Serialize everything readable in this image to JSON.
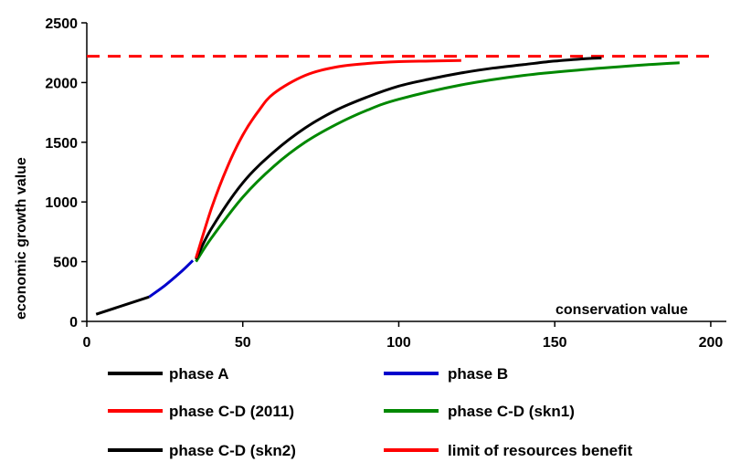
{
  "chart_data": {
    "type": "line",
    "title": "",
    "xlabel": "conservation  value",
    "ylabel": "economic  growth  value",
    "xlim": [
      0,
      205
    ],
    "ylim": [
      0,
      2500
    ],
    "xticks": [
      0,
      50,
      100,
      150,
      200
    ],
    "yticks": [
      0,
      500,
      1000,
      1500,
      2000,
      2500
    ],
    "grid": false,
    "legend_position": "bottom",
    "series": [
      {
        "name": "phase A",
        "color": "#000000",
        "style": "solid",
        "x": [
          3,
          20
        ],
        "y": [
          60,
          205
        ]
      },
      {
        "name": "phase B",
        "color": "#0000cc",
        "style": "solid",
        "x": [
          20,
          25,
          30,
          34
        ],
        "y": [
          205,
          300,
          410,
          510
        ]
      },
      {
        "name": "phase C-D (2011)",
        "color": "#ff0000",
        "style": "solid",
        "x": [
          35,
          40,
          45,
          50,
          55,
          60,
          70,
          80,
          90,
          100,
          110,
          120
        ],
        "y": [
          530,
          950,
          1290,
          1560,
          1760,
          1910,
          2060,
          2130,
          2160,
          2175,
          2180,
          2185
        ]
      },
      {
        "name": "phase  C-D (skn1)",
        "color": "#008800",
        "style": "solid",
        "x": [
          35,
          40,
          50,
          60,
          70,
          80,
          90,
          100,
          120,
          140,
          160,
          180,
          190
        ],
        "y": [
          500,
          700,
          1040,
          1300,
          1500,
          1650,
          1770,
          1860,
          1980,
          2060,
          2110,
          2150,
          2165
        ]
      },
      {
        "name": "phase  C-D  (skn2)",
        "color": "#000000",
        "style": "solid",
        "x": [
          35,
          40,
          50,
          60,
          70,
          80,
          90,
          100,
          110,
          120,
          130,
          140,
          150,
          160,
          165
        ],
        "y": [
          520,
          780,
          1160,
          1420,
          1620,
          1770,
          1880,
          1970,
          2030,
          2080,
          2120,
          2150,
          2180,
          2200,
          2205
        ]
      },
      {
        "name": "limit of resources benefit",
        "color": "#ff0000",
        "style": "dashed",
        "x": [
          0,
          200
        ],
        "y": [
          2220,
          2220
        ]
      }
    ]
  }
}
